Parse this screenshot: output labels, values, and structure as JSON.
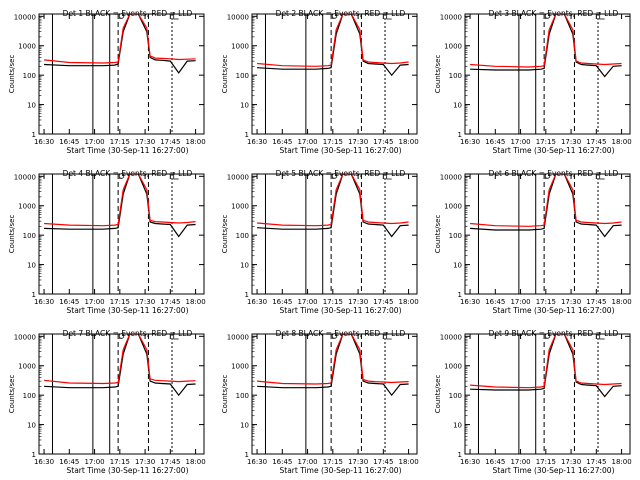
{
  "figure": {
    "colors": {
      "events": "#000000",
      "lld": "#ff0000",
      "background": "#ffffff"
    },
    "xlabel": "Start Time (30-Sep-11 16:27:00)",
    "ylabel": "Counts/sec",
    "xticks": [
      "16:30",
      "16:45",
      "17:00",
      "17:15",
      "17:30",
      "17:45",
      "18:00"
    ],
    "yticks": [
      "1",
      "10",
      "100",
      "1000",
      "10000"
    ],
    "grid": false,
    "legend_placement": "title"
  },
  "chart_data": [
    {
      "type": "line",
      "title": "Det 1  BLACK = Events, RED = LLD",
      "xlabel": "Start Time (30-Sep-11 16:27:00)",
      "ylabel": "Counts/sec",
      "yscale": "log",
      "xlim": [
        "16:27",
        "18:05"
      ],
      "ylim": [
        1,
        12000
      ],
      "series": [
        {
          "name": "Events",
          "color": "#000000",
          "x": [
            "16:30",
            "16:45",
            "17:05",
            "17:12",
            "17:14",
            "17:17",
            "17:21",
            "17:26",
            "17:31",
            "17:33",
            "17:36",
            "17:40",
            "17:45",
            "17:50",
            "17:55",
            "18:00"
          ],
          "y": [
            230,
            210,
            210,
            220,
            240,
            3000,
            12000,
            12000,
            3000,
            400,
            330,
            320,
            300,
            120,
            300,
            310
          ]
        },
        {
          "name": "LLD",
          "color": "#ff0000",
          "x": [
            "16:30",
            "16:45",
            "17:05",
            "17:12",
            "17:14",
            "17:17",
            "17:21",
            "17:26",
            "17:31",
            "17:33",
            "17:36",
            "17:40",
            "17:45",
            "17:50",
            "17:55",
            "18:00"
          ],
          "y": [
            330,
            270,
            260,
            270,
            280,
            4000,
            12000,
            12000,
            4000,
            450,
            380,
            370,
            360,
            340,
            350,
            360
          ]
        }
      ]
    },
    {
      "type": "line",
      "title": "Det 2  BLACK = Events, RED = LLD",
      "xlabel": "Start Time (30-Sep-11 16:27:00)",
      "ylabel": "Counts/sec",
      "yscale": "log",
      "xlim": [
        "16:27",
        "18:05"
      ],
      "ylim": [
        1,
        12000
      ],
      "series": [
        {
          "name": "Events",
          "color": "#000000",
          "x": [
            "16:30",
            "16:45",
            "17:05",
            "17:12",
            "17:14",
            "17:17",
            "17:21",
            "17:26",
            "17:31",
            "17:33",
            "17:36",
            "17:40",
            "17:45",
            "17:50",
            "17:55",
            "18:00"
          ],
          "y": [
            180,
            160,
            160,
            170,
            180,
            2500,
            12000,
            12000,
            2500,
            300,
            250,
            240,
            230,
            100,
            220,
            230
          ]
        },
        {
          "name": "LLD",
          "color": "#ff0000",
          "x": [
            "16:30",
            "16:45",
            "17:05",
            "17:12",
            "17:14",
            "17:17",
            "17:21",
            "17:26",
            "17:31",
            "17:33",
            "17:36",
            "17:40",
            "17:45",
            "17:50",
            "17:55",
            "18:00"
          ],
          "y": [
            250,
            210,
            200,
            210,
            220,
            3500,
            12000,
            12000,
            3500,
            330,
            280,
            270,
            260,
            250,
            260,
            280
          ]
        }
      ]
    },
    {
      "type": "line",
      "title": "Det 3  BLACK = Events, RED = LLD",
      "xlabel": "Start Time (30-Sep-11 16:27:00)",
      "ylabel": "Counts/sec",
      "yscale": "log",
      "xlim": [
        "16:27",
        "18:05"
      ],
      "ylim": [
        1,
        12000
      ],
      "series": [
        {
          "name": "Events",
          "color": "#000000",
          "x": [
            "16:30",
            "16:45",
            "17:05",
            "17:12",
            "17:14",
            "17:17",
            "17:21",
            "17:26",
            "17:31",
            "17:33",
            "17:36",
            "17:40",
            "17:45",
            "17:50",
            "17:55",
            "18:00"
          ],
          "y": [
            160,
            150,
            150,
            160,
            170,
            2500,
            12000,
            12000,
            2500,
            280,
            230,
            220,
            210,
            90,
            200,
            210
          ]
        },
        {
          "name": "LLD",
          "color": "#ff0000",
          "x": [
            "16:30",
            "16:45",
            "17:05",
            "17:12",
            "17:14",
            "17:17",
            "17:21",
            "17:26",
            "17:31",
            "17:33",
            "17:36",
            "17:40",
            "17:45",
            "17:50",
            "17:55",
            "18:00"
          ],
          "y": [
            230,
            200,
            190,
            200,
            210,
            3500,
            12000,
            12000,
            3500,
            300,
            260,
            250,
            240,
            230,
            240,
            250
          ]
        }
      ]
    },
    {
      "type": "line",
      "title": "Det 4  BLACK = Events, RED = LLD",
      "xlabel": "Start Time (30-Sep-11 16:27:00)",
      "ylabel": "Counts/sec",
      "yscale": "log",
      "xlim": [
        "16:27",
        "18:05"
      ],
      "ylim": [
        1,
        12000
      ],
      "series": [
        {
          "name": "Events",
          "color": "#000000",
          "x": [
            "16:30",
            "16:45",
            "17:05",
            "17:12",
            "17:14",
            "17:17",
            "17:21",
            "17:26",
            "17:31",
            "17:33",
            "17:36",
            "17:40",
            "17:45",
            "17:50",
            "17:55",
            "18:00"
          ],
          "y": [
            170,
            160,
            160,
            170,
            180,
            2500,
            12000,
            12000,
            2500,
            280,
            250,
            240,
            230,
            90,
            220,
            230
          ]
        },
        {
          "name": "LLD",
          "color": "#ff0000",
          "x": [
            "16:30",
            "16:45",
            "17:05",
            "17:12",
            "17:14",
            "17:17",
            "17:21",
            "17:26",
            "17:31",
            "17:33",
            "17:36",
            "17:40",
            "17:45",
            "17:50",
            "17:55",
            "18:00"
          ],
          "y": [
            250,
            220,
            210,
            220,
            230,
            3500,
            12000,
            12000,
            3500,
            320,
            290,
            280,
            270,
            260,
            270,
            290
          ]
        }
      ]
    },
    {
      "type": "line",
      "title": "Det 5  BLACK = Events, RED = LLD",
      "xlabel": "Start Time (30-Sep-11 16:27:00)",
      "ylabel": "Counts/sec",
      "yscale": "log",
      "xlim": [
        "16:27",
        "18:05"
      ],
      "ylim": [
        1,
        12000
      ],
      "series": [
        {
          "name": "Events",
          "color": "#000000",
          "x": [
            "16:30",
            "16:45",
            "17:05",
            "17:12",
            "17:14",
            "17:17",
            "17:21",
            "17:26",
            "17:31",
            "17:33",
            "17:36",
            "17:40",
            "17:45",
            "17:50",
            "17:55",
            "18:00"
          ],
          "y": [
            180,
            160,
            160,
            170,
            180,
            2500,
            12000,
            12000,
            2500,
            280,
            240,
            230,
            220,
            90,
            210,
            220
          ]
        },
        {
          "name": "LLD",
          "color": "#ff0000",
          "x": [
            "16:30",
            "16:45",
            "17:05",
            "17:12",
            "17:14",
            "17:17",
            "17:21",
            "17:26",
            "17:31",
            "17:33",
            "17:36",
            "17:40",
            "17:45",
            "17:50",
            "17:55",
            "18:00"
          ],
          "y": [
            260,
            220,
            210,
            220,
            230,
            3500,
            12000,
            12000,
            3500,
            320,
            280,
            270,
            260,
            250,
            260,
            280
          ]
        }
      ]
    },
    {
      "type": "line",
      "title": "Det 6  BLACK = Events, RED = LLD",
      "xlabel": "Start Time (30-Sep-11 16:27:00)",
      "ylabel": "Counts/sec",
      "yscale": "log",
      "xlim": [
        "16:27",
        "18:05"
      ],
      "ylim": [
        1,
        12000
      ],
      "series": [
        {
          "name": "Events",
          "color": "#000000",
          "x": [
            "16:30",
            "16:45",
            "17:05",
            "17:12",
            "17:14",
            "17:17",
            "17:21",
            "17:26",
            "17:31",
            "17:33",
            "17:36",
            "17:40",
            "17:45",
            "17:50",
            "17:55",
            "18:00"
          ],
          "y": [
            170,
            150,
            150,
            160,
            170,
            2500,
            12000,
            12000,
            2500,
            280,
            240,
            230,
            220,
            90,
            210,
            220
          ]
        },
        {
          "name": "LLD",
          "color": "#ff0000",
          "x": [
            "16:30",
            "16:45",
            "17:05",
            "17:12",
            "17:14",
            "17:17",
            "17:21",
            "17:26",
            "17:31",
            "17:33",
            "17:36",
            "17:40",
            "17:45",
            "17:50",
            "17:55",
            "18:00"
          ],
          "y": [
            250,
            210,
            200,
            210,
            220,
            3500,
            12000,
            12000,
            3500,
            320,
            280,
            270,
            260,
            250,
            260,
            280
          ]
        }
      ]
    },
    {
      "type": "line",
      "title": "Det 7  BLACK = Events, RED = LLD",
      "xlabel": "Start Time (30-Sep-11 16:27:00)",
      "ylabel": "Counts/sec",
      "yscale": "log",
      "xlim": [
        "16:27",
        "18:05"
      ],
      "ylim": [
        1,
        12000
      ],
      "series": [
        {
          "name": "Events",
          "color": "#000000",
          "x": [
            "16:30",
            "16:45",
            "17:05",
            "17:12",
            "17:14",
            "17:17",
            "17:21",
            "17:26",
            "17:31",
            "17:33",
            "17:36",
            "17:40",
            "17:45",
            "17:50",
            "17:55",
            "18:00"
          ],
          "y": [
            200,
            180,
            180,
            190,
            200,
            2500,
            12000,
            12000,
            2500,
            300,
            260,
            250,
            240,
            100,
            230,
            240
          ]
        },
        {
          "name": "LLD",
          "color": "#ff0000",
          "x": [
            "16:30",
            "16:45",
            "17:05",
            "17:12",
            "17:14",
            "17:17",
            "17:21",
            "17:26",
            "17:31",
            "17:33",
            "17:36",
            "17:40",
            "17:45",
            "17:50",
            "17:55",
            "18:00"
          ],
          "y": [
            320,
            260,
            250,
            260,
            270,
            3500,
            12000,
            12000,
            3500,
            360,
            320,
            310,
            300,
            290,
            300,
            310
          ]
        }
      ]
    },
    {
      "type": "line",
      "title": "Det 8  BLACK = Events, RED = LLD",
      "xlabel": "Start Time (30-Sep-11 16:27:00)",
      "ylabel": "Counts/sec",
      "yscale": "log",
      "xlim": [
        "16:27",
        "18:05"
      ],
      "ylim": [
        1,
        12000
      ],
      "series": [
        {
          "name": "Events",
          "color": "#000000",
          "x": [
            "16:30",
            "16:45",
            "17:05",
            "17:12",
            "17:14",
            "17:17",
            "17:21",
            "17:26",
            "17:31",
            "17:33",
            "17:36",
            "17:40",
            "17:45",
            "17:50",
            "17:55",
            "18:00"
          ],
          "y": [
            200,
            180,
            180,
            190,
            200,
            2500,
            12000,
            12000,
            2500,
            300,
            260,
            250,
            240,
            100,
            230,
            240
          ]
        },
        {
          "name": "LLD",
          "color": "#ff0000",
          "x": [
            "16:30",
            "16:45",
            "17:05",
            "17:12",
            "17:14",
            "17:17",
            "17:21",
            "17:26",
            "17:31",
            "17:33",
            "17:36",
            "17:40",
            "17:45",
            "17:50",
            "17:55",
            "18:00"
          ],
          "y": [
            300,
            250,
            240,
            250,
            260,
            3500,
            12000,
            12000,
            3500,
            340,
            300,
            290,
            280,
            270,
            280,
            290
          ]
        }
      ]
    },
    {
      "type": "line",
      "title": "Det 9  BLACK = Events, RED = LLD",
      "xlabel": "Start Time (30-Sep-11 16:27:00)",
      "ylabel": "Counts/sec",
      "yscale": "log",
      "xlim": [
        "16:27",
        "18:05"
      ],
      "ylim": [
        1,
        12000
      ],
      "series": [
        {
          "name": "Events",
          "color": "#000000",
          "x": [
            "16:30",
            "16:45",
            "17:05",
            "17:12",
            "17:14",
            "17:17",
            "17:21",
            "17:26",
            "17:31",
            "17:33",
            "17:36",
            "17:40",
            "17:45",
            "17:50",
            "17:55",
            "18:00"
          ],
          "y": [
            160,
            150,
            150,
            160,
            170,
            2500,
            12000,
            12000,
            2500,
            280,
            230,
            220,
            210,
            90,
            200,
            210
          ]
        },
        {
          "name": "LLD",
          "color": "#ff0000",
          "x": [
            "16:30",
            "16:45",
            "17:05",
            "17:12",
            "17:14",
            "17:17",
            "17:21",
            "17:26",
            "17:31",
            "17:33",
            "17:36",
            "17:40",
            "17:45",
            "17:50",
            "17:55",
            "18:00"
          ],
          "y": [
            220,
            190,
            180,
            190,
            200,
            3500,
            12000,
            12000,
            3500,
            300,
            260,
            250,
            240,
            230,
            240,
            250
          ]
        }
      ]
    }
  ]
}
